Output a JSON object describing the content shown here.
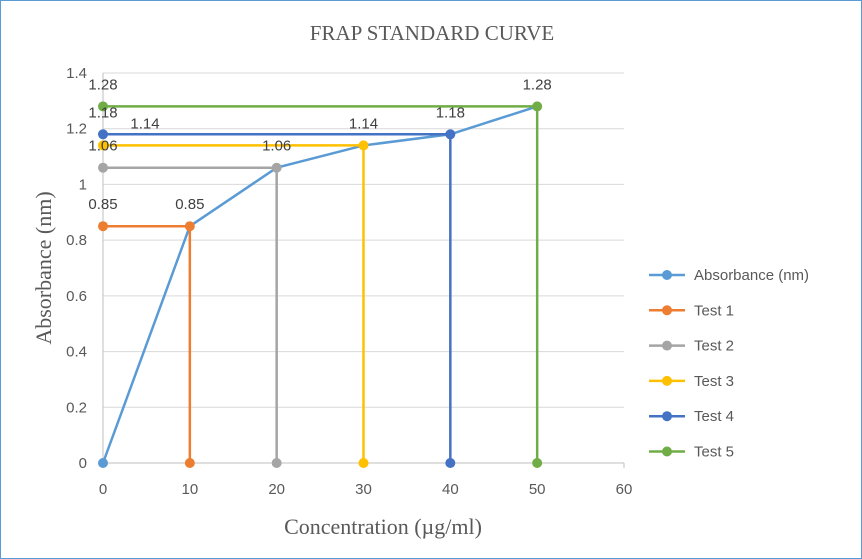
{
  "chart_data": {
    "type": "line",
    "title": "FRAP STANDARD CURVE",
    "xlabel": "Concentration  (µg/ml)",
    "ylabel": "Absorbance (nm)",
    "xlim": [
      0,
      60
    ],
    "ylim": [
      0,
      1.4
    ],
    "xticks": [
      0,
      10,
      20,
      30,
      40,
      50,
      60
    ],
    "yticks": [
      0,
      0.2,
      0.4,
      0.6,
      0.8,
      1,
      1.2,
      1.4
    ],
    "grid": true,
    "legend_position": "right",
    "series": [
      {
        "name": "Absorbance (nm)",
        "color": "#5b9bd5",
        "x": [
          0,
          10,
          20,
          30,
          40,
          50
        ],
        "y": [
          0,
          0.85,
          1.06,
          1.14,
          1.18,
          1.28
        ],
        "markers": [
          0
        ],
        "labels": []
      },
      {
        "name": "Test 1",
        "color": "#ed7d31",
        "x": [
          0,
          10,
          10
        ],
        "y": [
          0.85,
          0.85,
          0
        ],
        "markers": [
          0,
          1,
          2
        ],
        "labels": [
          0,
          1
        ]
      },
      {
        "name": "Test 2",
        "color": "#a5a5a5",
        "x": [
          0,
          20,
          20
        ],
        "y": [
          1.06,
          1.06,
          0
        ],
        "markers": [
          0,
          1,
          2
        ],
        "labels": [
          0,
          1
        ]
      },
      {
        "name": "Test 3",
        "color": "#ffc000",
        "x": [
          0,
          30,
          30
        ],
        "y": [
          1.14,
          1.14,
          0
        ],
        "markers": [
          0,
          1,
          2
        ],
        "labels": [
          0,
          1
        ]
      },
      {
        "name": "Test 4",
        "color": "#4472c4",
        "x": [
          0,
          40,
          40
        ],
        "y": [
          1.18,
          1.18,
          0
        ],
        "markers": [
          0,
          1,
          2
        ],
        "labels": [
          0,
          1
        ]
      },
      {
        "name": "Test 5",
        "color": "#70ad47",
        "x": [
          0,
          50,
          50
        ],
        "y": [
          1.28,
          1.28,
          0
        ],
        "markers": [
          0,
          1,
          2
        ],
        "labels": [
          0,
          1
        ]
      }
    ]
  }
}
